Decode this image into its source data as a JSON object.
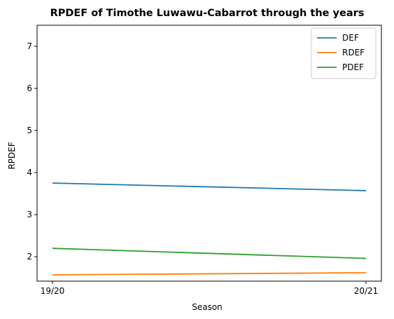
{
  "chart_data": {
    "type": "line",
    "title": "RPDEF of Timothe Luwawu-Cabarrot through the years",
    "xlabel": "Season",
    "ylabel": "RPDEF",
    "categories": [
      "19/20",
      "20/21"
    ],
    "ylim": [
      1.42,
      7.5
    ],
    "yticks": [
      2,
      3,
      4,
      5,
      6,
      7
    ],
    "grid": false,
    "legend_position": "top-right",
    "series": [
      {
        "name": "DEF",
        "color": "#1f77b4",
        "values": [
          3.75,
          3.57
        ]
      },
      {
        "name": "RDEF",
        "color": "#ff7f0e",
        "values": [
          1.57,
          1.62
        ]
      },
      {
        "name": "PDEF",
        "color": "#2ca02c",
        "values": [
          2.2,
          1.96
        ]
      }
    ]
  }
}
